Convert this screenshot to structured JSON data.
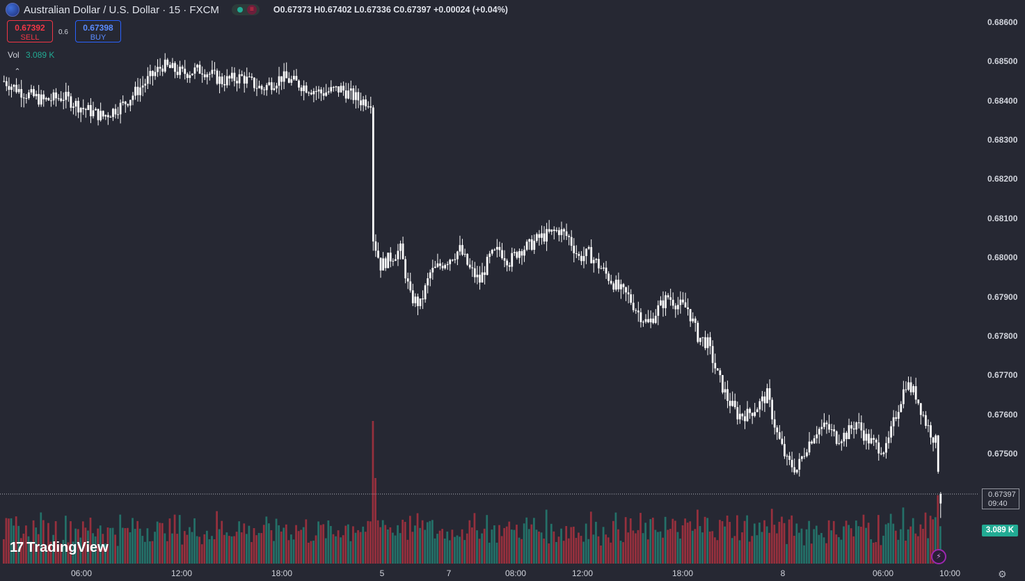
{
  "header": {
    "title": "Australian Dollar / U.S. Dollar · 15 · FXCM",
    "ohlc": "O0.67373  H0.67402  L0.67336  C0.67397  +0.00024 (+0.04%)"
  },
  "trade": {
    "sell_price": "0.67392",
    "sell_label": "SELL",
    "spread": "0.6",
    "buy_price": "0.67398",
    "buy_label": "BUY"
  },
  "volume_legend": {
    "label": "Vol",
    "value": "3.089 K"
  },
  "last_price": {
    "price": "0.67397",
    "countdown": "09:40"
  },
  "volume_box": "3.089 K",
  "logo": {
    "text": "TradingView"
  },
  "colors": {
    "up": "#ffffff",
    "down": "#ffffff",
    "vol_up": "#22ab94",
    "vol_down": "#f23645"
  },
  "chart_data": {
    "type": "candlestick",
    "symbol": "AUDUSD",
    "interval": "15",
    "y_range": [
      0.6735,
      0.6864
    ],
    "y_ticks": [
      "0.68600",
      "0.68500",
      "0.68400",
      "0.68300",
      "0.68200",
      "0.68100",
      "0.68000",
      "0.67900",
      "0.67800",
      "0.67700",
      "0.67600",
      "0.67500"
    ],
    "x_ticks": [
      "06:00",
      "12:00",
      "18:00",
      "5",
      "7",
      "08:00",
      "12:00",
      "18:00",
      "8",
      "06:00",
      "10:00"
    ],
    "close_path": [
      [
        0,
        0.6845
      ],
      [
        8,
        0.6842
      ],
      [
        16,
        0.684
      ],
      [
        24,
        0.6841
      ],
      [
        32,
        0.6838
      ],
      [
        40,
        0.6836
      ],
      [
        48,
        0.6839
      ],
      [
        56,
        0.6844
      ],
      [
        64,
        0.6849
      ],
      [
        72,
        0.6847
      ],
      [
        80,
        0.6848
      ],
      [
        88,
        0.6845
      ],
      [
        96,
        0.6846
      ],
      [
        104,
        0.6843
      ],
      [
        112,
        0.6846
      ],
      [
        120,
        0.6844
      ],
      [
        128,
        0.6842
      ],
      [
        136,
        0.6843
      ],
      [
        144,
        0.684
      ],
      [
        148,
        0.684
      ],
      [
        149,
        0.6805
      ],
      [
        152,
        0.6798
      ],
      [
        156,
        0.68
      ],
      [
        160,
        0.6802
      ],
      [
        164,
        0.679
      ],
      [
        168,
        0.6788
      ],
      [
        172,
        0.6796
      ],
      [
        176,
        0.6798
      ],
      [
        180,
        0.68
      ],
      [
        184,
        0.6802
      ],
      [
        188,
        0.6797
      ],
      [
        192,
        0.6794
      ],
      [
        196,
        0.68
      ],
      [
        200,
        0.6802
      ],
      [
        204,
        0.6799
      ],
      [
        208,
        0.6802
      ],
      [
        212,
        0.6803
      ],
      [
        216,
        0.6805
      ],
      [
        220,
        0.6806
      ],
      [
        224,
        0.6807
      ],
      [
        228,
        0.6805
      ],
      [
        232,
        0.68
      ],
      [
        236,
        0.6801
      ],
      [
        240,
        0.6798
      ],
      [
        244,
        0.6795
      ],
      [
        248,
        0.6792
      ],
      [
        252,
        0.679
      ],
      [
        256,
        0.6786
      ],
      [
        260,
        0.6783
      ],
      [
        264,
        0.6787
      ],
      [
        268,
        0.679
      ],
      [
        272,
        0.6788
      ],
      [
        276,
        0.6787
      ],
      [
        280,
        0.678
      ],
      [
        284,
        0.6778
      ],
      [
        288,
        0.677
      ],
      [
        292,
        0.6764
      ],
      [
        296,
        0.676
      ],
      [
        300,
        0.676
      ],
      [
        304,
        0.6762
      ],
      [
        308,
        0.6765
      ],
      [
        312,
        0.6755
      ],
      [
        316,
        0.6748
      ],
      [
        320,
        0.6746
      ],
      [
        324,
        0.6752
      ],
      [
        328,
        0.6756
      ],
      [
        332,
        0.6757
      ],
      [
        336,
        0.6754
      ],
      [
        340,
        0.6755
      ],
      [
        344,
        0.6758
      ],
      [
        348,
        0.6754
      ],
      [
        352,
        0.6752
      ],
      [
        356,
        0.6751
      ],
      [
        360,
        0.676
      ],
      [
        364,
        0.6768
      ],
      [
        368,
        0.6765
      ],
      [
        372,
        0.6758
      ],
      [
        376,
        0.6753
      ],
      [
        378,
        0.674
      ]
    ],
    "volume": {
      "max_label": "3.089 K"
    }
  }
}
